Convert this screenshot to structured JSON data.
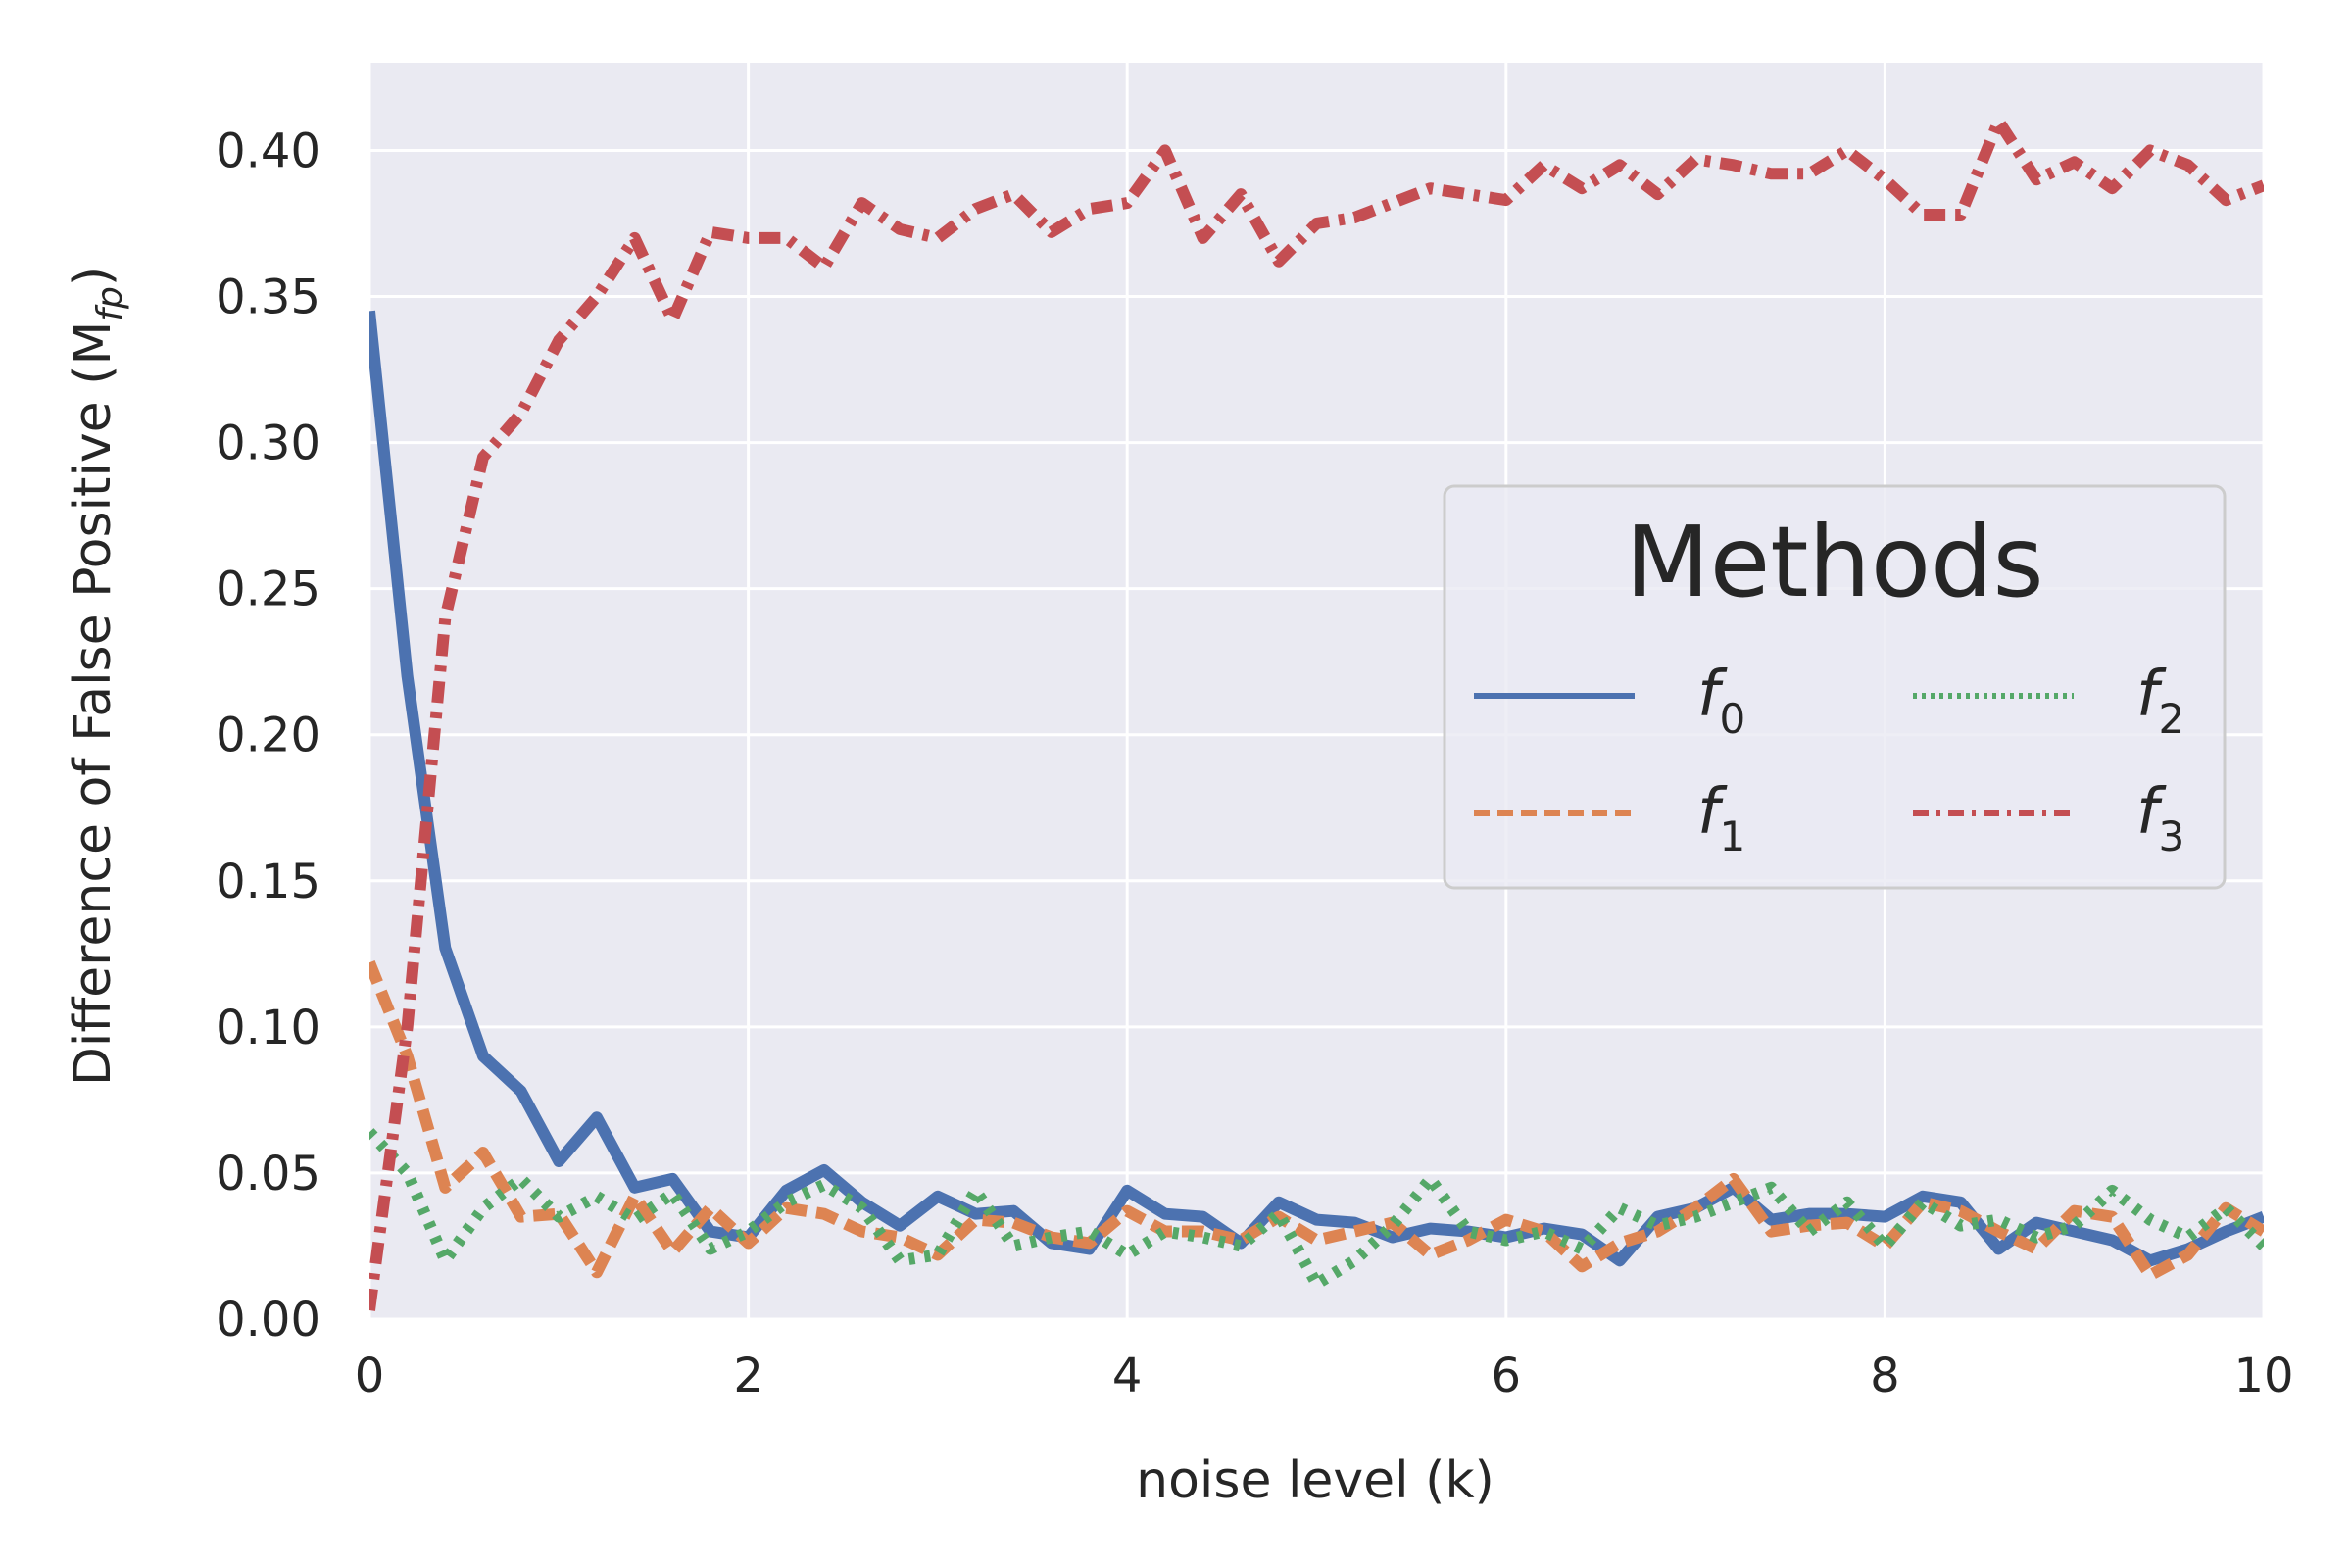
{
  "chart_data": {
    "type": "line",
    "title": "",
    "xlabel": "noise level (k)",
    "ylabel": "Difference of False Positive (M",
    "ylabel_subscript": "fp",
    "ylabel_suffix": ")",
    "xlim": [
      0,
      10
    ],
    "ylim": [
      0,
      0.43
    ],
    "xticks": [
      0,
      2,
      4,
      6,
      8,
      10
    ],
    "xtick_labels": [
      "0",
      "2",
      "4",
      "6",
      "8",
      "10"
    ],
    "yticks": [
      0,
      0.05,
      0.1,
      0.15,
      0.2,
      0.25,
      0.3,
      0.35,
      0.4
    ],
    "ytick_labels": [
      "0.00",
      "0.05",
      "0.10",
      "0.15",
      "0.20",
      "0.25",
      "0.30",
      "0.35",
      "0.40"
    ],
    "grid": true,
    "legend": {
      "title": "Methods",
      "position": "center-right",
      "columns": 2
    },
    "x": [
      0,
      0.2,
      0.4,
      0.6,
      0.8,
      1.0,
      1.2,
      1.4,
      1.6,
      1.8,
      2.0,
      2.2,
      2.4,
      2.6,
      2.8,
      3.0,
      3.2,
      3.4,
      3.6,
      3.8,
      4.0,
      4.2,
      4.4,
      4.6,
      4.8,
      5.0,
      5.2,
      5.4,
      5.6,
      5.8,
      6.0,
      6.2,
      6.4,
      6.6,
      6.8,
      7.0,
      7.2,
      7.4,
      7.6,
      7.8,
      8.0,
      8.2,
      8.4,
      8.6,
      8.8,
      9.0,
      9.2,
      9.4,
      9.6,
      9.8,
      10.0
    ],
    "series": [
      {
        "name": "f",
        "subscript": "0",
        "color": "#4c72b0",
        "style": "solid",
        "values": [
          0.345,
          0.22,
          0.127,
          0.09,
          0.078,
          0.054,
          0.069,
          0.045,
          0.048,
          0.03,
          0.028,
          0.044,
          0.051,
          0.04,
          0.032,
          0.042,
          0.036,
          0.037,
          0.026,
          0.024,
          0.044,
          0.036,
          0.035,
          0.026,
          0.04,
          0.034,
          0.033,
          0.028,
          0.031,
          0.03,
          0.028,
          0.031,
          0.029,
          0.02,
          0.035,
          0.038,
          0.045,
          0.034,
          0.036,
          0.036,
          0.035,
          0.042,
          0.04,
          0.024,
          0.033,
          0.03,
          0.027,
          0.02,
          0.024,
          0.03,
          0.035
        ]
      },
      {
        "name": "f",
        "subscript": "1",
        "color": "#dd8452",
        "style": "dashed",
        "values": [
          0.122,
          0.09,
          0.045,
          0.057,
          0.035,
          0.036,
          0.016,
          0.042,
          0.023,
          0.038,
          0.026,
          0.038,
          0.036,
          0.03,
          0.028,
          0.022,
          0.034,
          0.033,
          0.028,
          0.026,
          0.037,
          0.03,
          0.03,
          0.027,
          0.035,
          0.027,
          0.03,
          0.033,
          0.022,
          0.027,
          0.034,
          0.03,
          0.018,
          0.026,
          0.03,
          0.038,
          0.048,
          0.03,
          0.032,
          0.033,
          0.025,
          0.04,
          0.037,
          0.03,
          0.024,
          0.037,
          0.035,
          0.015,
          0.022,
          0.038,
          0.03
        ]
      },
      {
        "name": "f",
        "subscript": "2",
        "color": "#55a868",
        "style": "dotted",
        "values": [
          0.064,
          0.05,
          0.02,
          0.038,
          0.048,
          0.035,
          0.042,
          0.034,
          0.043,
          0.024,
          0.03,
          0.04,
          0.046,
          0.038,
          0.02,
          0.022,
          0.044,
          0.025,
          0.028,
          0.03,
          0.022,
          0.03,
          0.028,
          0.025,
          0.036,
          0.012,
          0.02,
          0.032,
          0.048,
          0.03,
          0.027,
          0.03,
          0.024,
          0.038,
          0.032,
          0.035,
          0.04,
          0.045,
          0.03,
          0.04,
          0.025,
          0.04,
          0.032,
          0.034,
          0.028,
          0.032,
          0.044,
          0.034,
          0.028,
          0.038,
          0.025
        ]
      },
      {
        "name": "f",
        "subscript": "3",
        "color": "#c44e52",
        "style": "dashdot",
        "values": [
          0.003,
          0.1,
          0.24,
          0.295,
          0.31,
          0.335,
          0.35,
          0.37,
          0.342,
          0.372,
          0.37,
          0.37,
          0.36,
          0.382,
          0.373,
          0.37,
          0.38,
          0.385,
          0.372,
          0.38,
          0.382,
          0.4,
          0.37,
          0.385,
          0.362,
          0.375,
          0.377,
          0.382,
          0.387,
          0.385,
          0.383,
          0.395,
          0.387,
          0.395,
          0.385,
          0.397,
          0.395,
          0.392,
          0.392,
          0.4,
          0.39,
          0.378,
          0.378,
          0.41,
          0.39,
          0.396,
          0.387,
          0.4,
          0.395,
          0.383,
          0.388
        ]
      }
    ]
  }
}
